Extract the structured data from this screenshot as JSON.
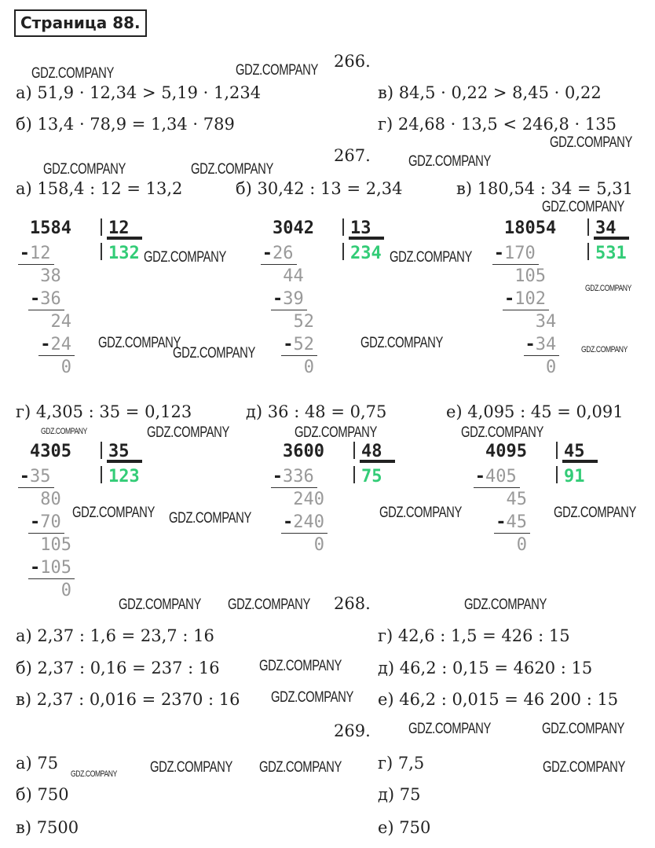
{
  "page_title": "Страница 88.",
  "watermark": "GDZ.COMPANY",
  "colors": {
    "quotient": "#33cc77",
    "steps": "#999999"
  },
  "tasks": [
    {
      "number": "266.",
      "items": [
        {
          "label": "а) 51,9 · 12,34 > 5,19 · 1,234"
        },
        {
          "label": "б) 13,4 · 78,9 = 1,34 · 789"
        },
        {
          "label": "в) 84,5 · 0,22 > 8,45 · 0,22"
        },
        {
          "label": "г) 24,68 · 13,5 < 246,8 · 135"
        }
      ]
    },
    {
      "number": "267.",
      "items": [
        {
          "label": "а) 158,4 : 12 = 13,2"
        },
        {
          "label": "б) 30,42 : 13 = 2,34"
        },
        {
          "label": "в) 180,54 : 34 = 5,31"
        },
        {
          "label": "г) 4,305 : 35 = 0,123"
        },
        {
          "label": "д) 36 : 48 = 0,75"
        },
        {
          "label": "е) 4,095 : 45 = 0,091"
        }
      ]
    },
    {
      "number": "268.",
      "items": [
        {
          "label": "а) 2,37 : 1,6 = 23,7 : 16"
        },
        {
          "label": "б) 2,37 : 0,16 = 237 : 16"
        },
        {
          "label": "в) 2,37 : 0,016 = 2370 : 16"
        },
        {
          "label": "г) 42,6 : 1,5 = 426 : 15"
        },
        {
          "label": "д) 46,2 : 0,15 = 4620 : 15"
        },
        {
          "label": "е) 46,2 : 0,015 = 46 200 : 15"
        }
      ]
    },
    {
      "number": "269.",
      "items": [
        {
          "label": "а) 75"
        },
        {
          "label": "б) 750"
        },
        {
          "label": "в) 7500"
        },
        {
          "label": "г) 7,5"
        },
        {
          "label": "д) 75"
        },
        {
          "label": "е) 750"
        }
      ]
    }
  ],
  "divisions": [
    {
      "dividend": "1584",
      "divisor": "12",
      "quotient": "132",
      "steps": [
        [
          "12",
          "38"
        ],
        [
          "36",
          "24"
        ],
        [
          "24",
          "0"
        ]
      ]
    },
    {
      "dividend": "3042",
      "divisor": "13",
      "quotient": "234",
      "steps": [
        [
          "26",
          "44"
        ],
        [
          "39",
          "52"
        ],
        [
          "52",
          "0"
        ]
      ]
    },
    {
      "dividend": "18054",
      "divisor": "34",
      "quotient": "531",
      "steps": [
        [
          "170",
          "105"
        ],
        [
          "102",
          "34"
        ],
        [
          "34",
          "0"
        ]
      ]
    },
    {
      "dividend": "4305",
      "divisor": "35",
      "quotient": "123",
      "steps": [
        [
          "35",
          "80"
        ],
        [
          "70",
          "105"
        ],
        [
          "105",
          "0"
        ]
      ]
    },
    {
      "dividend": "3600",
      "divisor": "48",
      "quotient": "75",
      "steps": [
        [
          "336",
          "240"
        ],
        [
          "240",
          "0"
        ]
      ]
    },
    {
      "dividend": "4095",
      "divisor": "45",
      "quotient": "91",
      "steps": [
        [
          "405",
          "45"
        ],
        [
          "45",
          "0"
        ]
      ]
    }
  ]
}
